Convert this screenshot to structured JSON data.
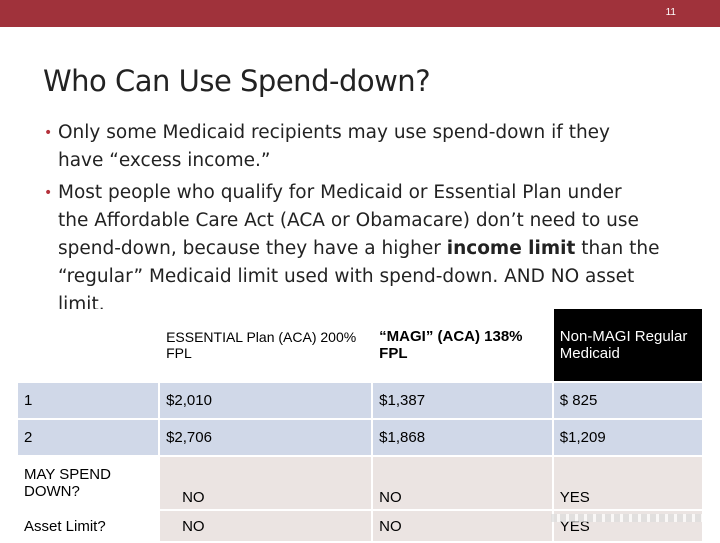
{
  "slide": {
    "number": "11",
    "title": "Who Can Use Spend-down?"
  },
  "colors": {
    "bar": "#a0323b",
    "accent": "#b5323c",
    "row_blue": "#d0d8e8",
    "row_tan": "#ebe4e2"
  },
  "bullets": [
    {
      "lines": [
        "Only some Medicaid recipients may use spend-down if they",
        "have “excess income.”"
      ]
    },
    {
      "line1": "Most people who qualify for Medicaid  or Essential Plan under",
      "line2": "the Affordable Care Act (ACA or Obamacare) don’t need to use",
      "line3": "spend-down, because they have a higher ",
      "line3_bold": "income limit",
      "line3_end": " than the",
      "line4": "“regular” Medicaid limit used with spend-down. AND NO asset",
      "line5": "limit."
    }
  ],
  "table": {
    "headers": [
      "ESSENTIAL Plan (ACA) 200% FPL",
      "“MAGI” (ACA) 138% FPL",
      "Non-MAGI Regular Medicaid"
    ],
    "rows": [
      {
        "label": "1",
        "cells": [
          "$2,010",
          "$1,387",
          "$  825"
        ]
      },
      {
        "label": "2",
        "cells": [
          "$2,706",
          "$1,868",
          "$1,209"
        ]
      },
      {
        "label": "MAY SPEND DOWN?",
        "cells": [
          "NO",
          "NO",
          "YES"
        ]
      },
      {
        "label": "Asset Limit?",
        "cells": [
          "NO",
          "NO",
          "YES"
        ]
      }
    ]
  }
}
